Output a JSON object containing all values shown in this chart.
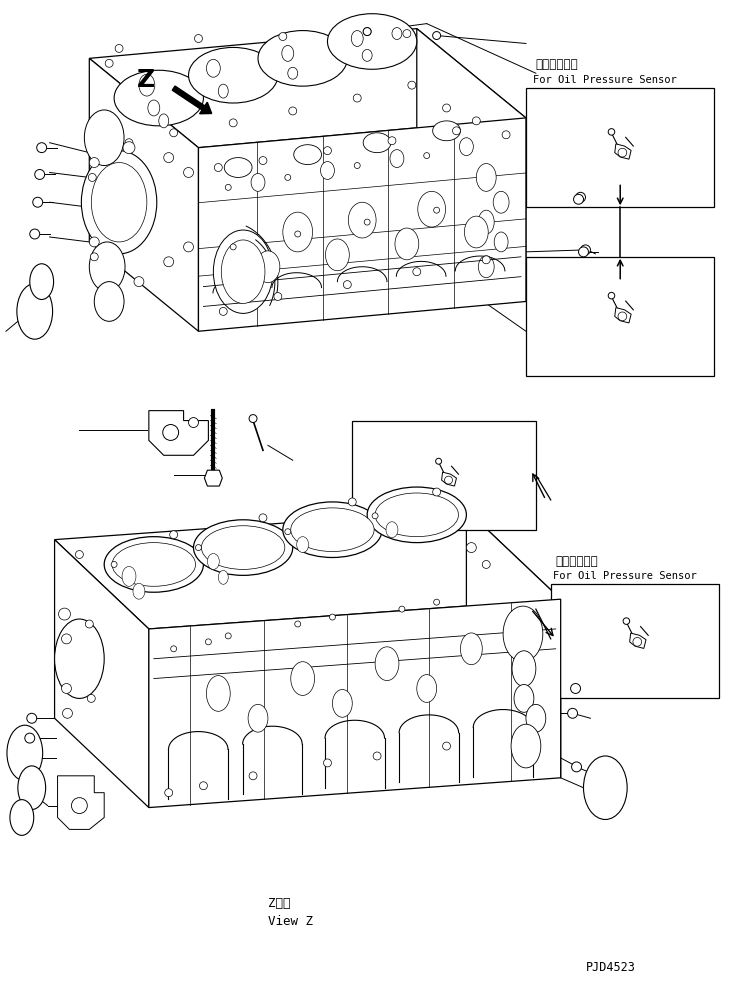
{
  "bg_color": "#ffffff",
  "lc": "#000000",
  "jp_label1": "油圧センサ用",
  "en_label1": "For Oil Pressure Sensor",
  "jp_label2": "油圧センサ用",
  "en_label2": "For Oil Pressure Sensor",
  "view_z_jp": "Z　視",
  "view_z_en": "View Z",
  "z_label": "Z",
  "part_code": "PJD4523",
  "fig_w": 7.34,
  "fig_h": 9.86,
  "dpi": 100
}
